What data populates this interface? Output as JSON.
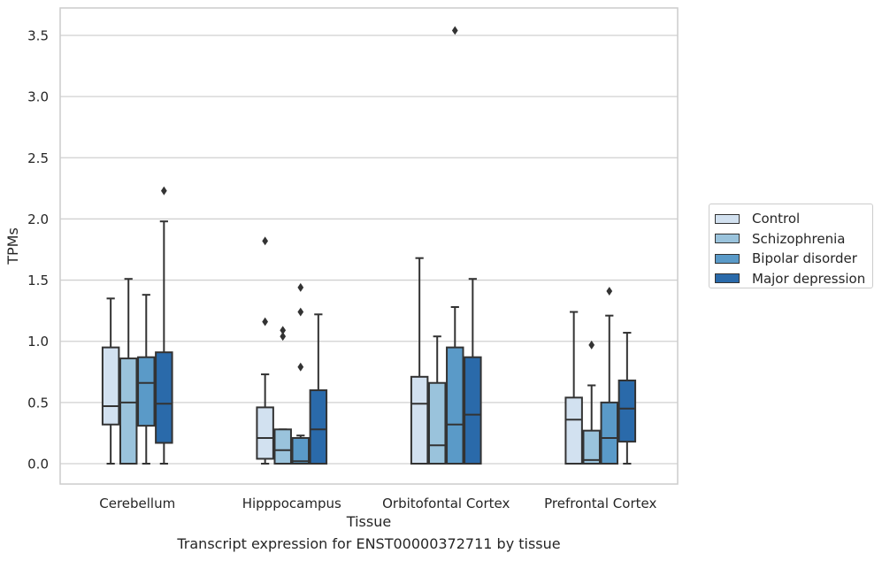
{
  "chart_data": {
    "type": "box",
    "title": "Transcript expression for ENST00000372711 by tissue",
    "xlabel": "Tissue",
    "ylabel": "TPMs",
    "ylim": [
      -0.17,
      3.72
    ],
    "yticks": [
      "0.0",
      "0.5",
      "1.0",
      "1.5",
      "2.0",
      "2.5",
      "3.0",
      "3.5"
    ],
    "grid": true,
    "legend_position": "outside-right",
    "categories": [
      "Cerebellum",
      "Hipppocampus",
      "Orbitofontal Cortex",
      "Prefrontal Cortex"
    ],
    "series": [
      {
        "name": "Control",
        "color": "#d2e1f0",
        "boxes": [
          {
            "whislo": 0.0,
            "q1": 0.32,
            "med": 0.47,
            "q3": 0.95,
            "whishi": 1.35,
            "fliers": []
          },
          {
            "whislo": 0.0,
            "q1": 0.04,
            "med": 0.21,
            "q3": 0.46,
            "whishi": 0.73,
            "fliers": [
              1.16,
              1.82
            ]
          },
          {
            "whislo": 0.0,
            "q1": 0.0,
            "med": 0.49,
            "q3": 0.71,
            "whishi": 1.68,
            "fliers": []
          },
          {
            "whislo": 0.0,
            "q1": 0.0,
            "med": 0.36,
            "q3": 0.54,
            "whishi": 1.24,
            "fliers": []
          }
        ]
      },
      {
        "name": "Schizophrenia",
        "color": "#9ac3dc",
        "boxes": [
          {
            "whislo": 0.0,
            "q1": 0.0,
            "med": 0.5,
            "q3": 0.86,
            "whishi": 1.51,
            "fliers": []
          },
          {
            "whislo": 0.0,
            "q1": 0.0,
            "med": 0.11,
            "q3": 0.28,
            "whishi": 0.28,
            "fliers": [
              1.04,
              1.09
            ]
          },
          {
            "whislo": 0.0,
            "q1": 0.0,
            "med": 0.15,
            "q3": 0.66,
            "whishi": 1.04,
            "fliers": []
          },
          {
            "whislo": 0.0,
            "q1": 0.0,
            "med": 0.03,
            "q3": 0.27,
            "whishi": 0.64,
            "fliers": [
              0.97
            ]
          }
        ]
      },
      {
        "name": "Bipolar disorder",
        "color": "#5a9ac8",
        "boxes": [
          {
            "whislo": 0.0,
            "q1": 0.31,
            "med": 0.66,
            "q3": 0.87,
            "whishi": 1.38,
            "fliers": []
          },
          {
            "whislo": 0.0,
            "q1": 0.0,
            "med": 0.02,
            "q3": 0.21,
            "whishi": 0.23,
            "fliers": [
              0.79,
              1.24,
              1.44
            ]
          },
          {
            "whislo": 0.0,
            "q1": 0.0,
            "med": 0.32,
            "q3": 0.95,
            "whishi": 1.28,
            "fliers": [
              3.54
            ]
          },
          {
            "whislo": 0.0,
            "q1": 0.0,
            "med": 0.21,
            "q3": 0.5,
            "whishi": 1.21,
            "fliers": [
              1.41
            ]
          }
        ]
      },
      {
        "name": "Major depression",
        "color": "#2a6aaa",
        "boxes": [
          {
            "whislo": 0.0,
            "q1": 0.17,
            "med": 0.49,
            "q3": 0.91,
            "whishi": 1.98,
            "fliers": [
              2.23
            ]
          },
          {
            "whislo": 0.0,
            "q1": 0.0,
            "med": 0.28,
            "q3": 0.6,
            "whishi": 1.22,
            "fliers": []
          },
          {
            "whislo": 0.0,
            "q1": 0.0,
            "med": 0.4,
            "q3": 0.87,
            "whishi": 1.51,
            "fliers": []
          },
          {
            "whislo": 0.0,
            "q1": 0.18,
            "med": 0.45,
            "q3": 0.68,
            "whishi": 1.07,
            "fliers": []
          }
        ]
      }
    ]
  }
}
